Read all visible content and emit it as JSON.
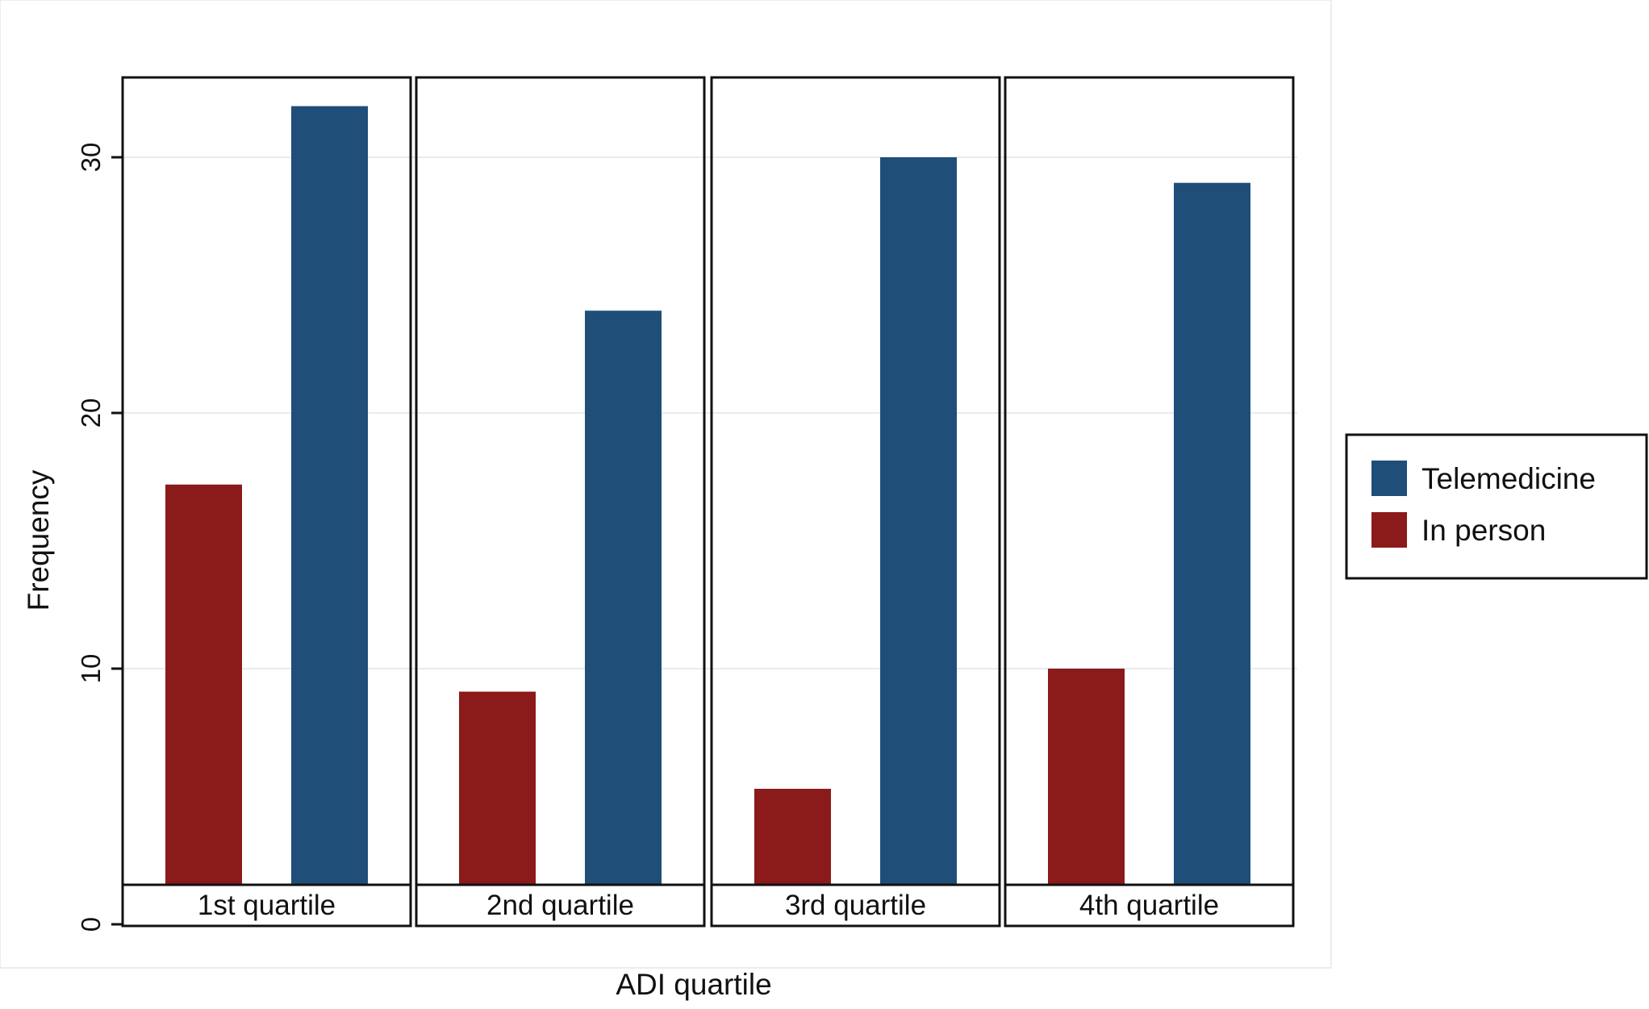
{
  "chart_data": {
    "type": "bar",
    "title": "",
    "xlabel": "ADI quartile",
    "ylabel": "Frequency",
    "categories": [
      "1st quartile",
      "2nd quartile",
      "3rd quartile",
      "4th quartile"
    ],
    "ylim": [
      0,
      33
    ],
    "yticks": [
      0,
      10,
      20,
      30
    ],
    "grid": true,
    "legend_position": "right",
    "series": [
      {
        "name": "In person",
        "color": "#8b1a1a",
        "values": [
          17.2,
          9.1,
          5.3,
          10.0
        ]
      },
      {
        "name": "Telemedicine",
        "color": "#1f4e79",
        "values": [
          32,
          24,
          30,
          29
        ]
      }
    ],
    "legend_order": [
      "Telemedicine",
      "In person"
    ]
  }
}
